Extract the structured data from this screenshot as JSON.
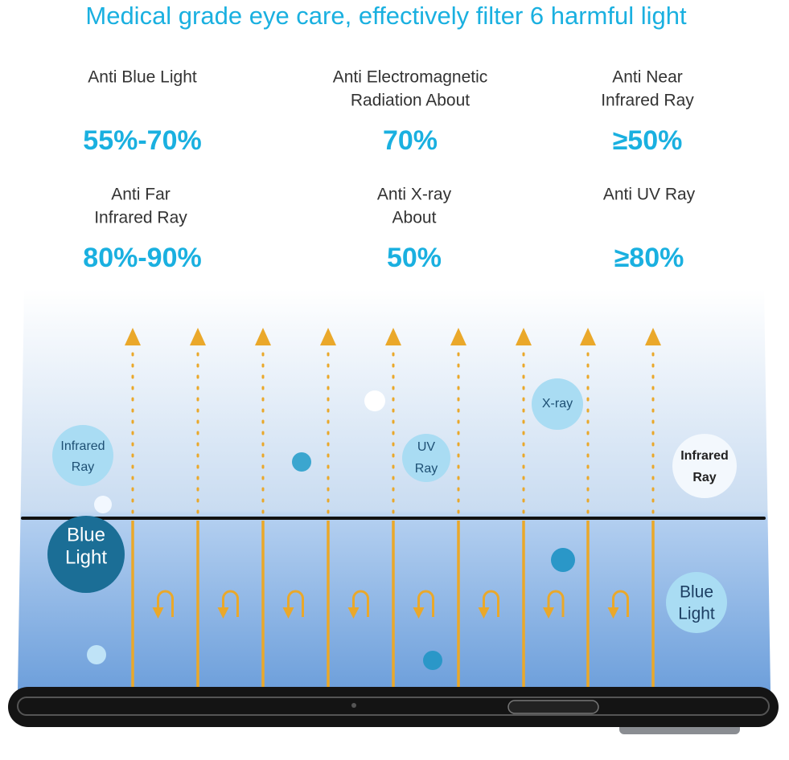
{
  "title": "Medical grade eye care, effectively filter 6 harmful light",
  "features": [
    {
      "label": [
        "Anti Blue Light"
      ],
      "value": "55%-70%"
    },
    {
      "label": [
        "Anti Electromagnetic",
        "Radiation About"
      ],
      "value": "70%"
    },
    {
      "label": [
        "Anti Near",
        "Infrared Ray"
      ],
      "value": "≥50%"
    },
    {
      "label": [
        "Anti Far",
        "Infrared Ray"
      ],
      "value": "80%-90%"
    },
    {
      "label": [
        "Anti X-ray",
        "About"
      ],
      "value": "50%"
    },
    {
      "label": [
        "Anti UV Ray"
      ],
      "value": "≥80%"
    }
  ],
  "bubbles": [
    {
      "label": [
        "Infrared",
        "Ray"
      ]
    },
    {
      "label": [
        "Blue",
        "Light"
      ]
    },
    {
      "label": [
        "UV",
        "Ray"
      ]
    },
    {
      "label": [
        "X-ray"
      ]
    },
    {
      "label": [
        "Infrared",
        "Ray"
      ]
    },
    {
      "label": [
        "Blue",
        "Light"
      ]
    }
  ]
}
